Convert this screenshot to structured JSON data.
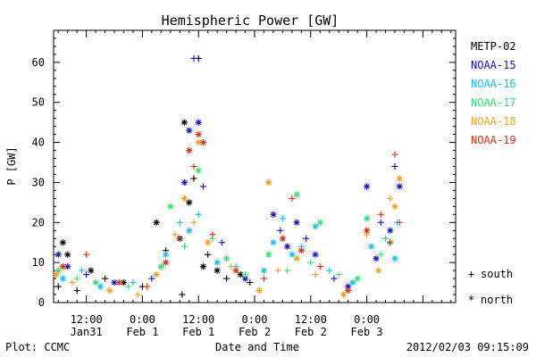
{
  "chart_data": {
    "type": "scatter",
    "title": "Hemispheric Power [GW]",
    "xlabel": "Date and Time",
    "ylabel": "P [GW]",
    "xlim": [
      "2012-01-31T05:00",
      "2012-02-03T19:00"
    ],
    "ylim": [
      0,
      68
    ],
    "grid": false,
    "legend_position": "right",
    "x_ticks": [
      {
        "t": "2012-01-31T12:00",
        "line1": "12:00",
        "line2": "Jan31"
      },
      {
        "t": "2012-02-01T00:00",
        "line1": "0:00",
        "line2": "Feb 1"
      },
      {
        "t": "2012-02-01T12:00",
        "line1": "12:00",
        "line2": "Feb 1"
      },
      {
        "t": "2012-02-02T00:00",
        "line1": "0:00",
        "line2": "Feb 2"
      },
      {
        "t": "2012-02-02T12:00",
        "line1": "12:00",
        "line2": "Feb 2"
      },
      {
        "t": "2012-02-03T00:00",
        "line1": "0:00",
        "line2": "Feb 3"
      }
    ],
    "y_ticks": [
      0,
      10,
      20,
      30,
      40,
      50,
      60
    ],
    "marker_legend": [
      {
        "symbol": "+",
        "label": "south"
      },
      {
        "symbol": "*",
        "label": "north"
      }
    ],
    "footer_left": "Plot: CCMC",
    "footer_right": "2012/02/03 09:15:09",
    "series": [
      {
        "name": "METP-02",
        "color": "#000000",
        "points": [
          [
            "2012-01-31T06:00",
            4,
            "+"
          ],
          [
            "2012-01-31T07:00",
            15,
            "*"
          ],
          [
            "2012-01-31T08:00",
            12,
            "*"
          ],
          [
            "2012-01-31T10:00",
            3,
            "+"
          ],
          [
            "2012-01-31T13:00",
            8,
            "*"
          ],
          [
            "2012-01-31T16:00",
            6,
            "+"
          ],
          [
            "2012-01-31T20:00",
            5,
            "*"
          ],
          [
            "2012-02-01T00:00",
            4,
            "+"
          ],
          [
            "2012-02-01T03:00",
            20,
            "*"
          ],
          [
            "2012-02-01T05:00",
            13,
            "+"
          ],
          [
            "2012-02-01T08:00",
            16,
            "*"
          ],
          [
            "2012-02-01T08:30",
            2,
            "+"
          ],
          [
            "2012-02-01T09:00",
            45,
            "*"
          ],
          [
            "2012-02-01T10:00",
            25,
            "*"
          ],
          [
            "2012-02-01T11:00",
            31,
            "+"
          ],
          [
            "2012-02-01T12:00",
            61,
            "+"
          ],
          [
            "2012-02-01T13:00",
            9,
            "*"
          ],
          [
            "2012-02-01T14:00",
            12,
            "+"
          ],
          [
            "2012-02-01T16:00",
            8,
            "*"
          ],
          [
            "2012-02-01T18:00",
            6,
            "+"
          ],
          [
            "2012-02-01T21:00",
            7,
            "*"
          ],
          [
            "2012-02-01T23:00",
            5,
            "+"
          ]
        ]
      },
      {
        "name": "NOAA-15",
        "color": "#1010d0",
        "points": [
          [
            "2012-01-31T06:00",
            12,
            "*"
          ],
          [
            "2012-01-31T08:00",
            9,
            "*"
          ],
          [
            "2012-01-31T12:00",
            7,
            "+"
          ],
          [
            "2012-01-31T18:00",
            5,
            "*"
          ],
          [
            "2012-02-01T02:00",
            6,
            "+"
          ],
          [
            "2012-02-01T09:00",
            30,
            "*"
          ],
          [
            "2012-02-01T10:00",
            43,
            "*"
          ],
          [
            "2012-02-01T11:00",
            61,
            "+"
          ],
          [
            "2012-02-01T12:00",
            45,
            "*"
          ],
          [
            "2012-02-01T13:00",
            29,
            "+"
          ],
          [
            "2012-02-01T17:00",
            15,
            "+"
          ],
          [
            "2012-02-01T22:00",
            6,
            "*"
          ],
          [
            "2012-02-02T04:00",
            22,
            "*"
          ],
          [
            "2012-02-02T05:30",
            18,
            "+"
          ],
          [
            "2012-02-02T07:00",
            14,
            "*"
          ],
          [
            "2012-02-02T09:00",
            20,
            "*"
          ],
          [
            "2012-02-02T11:00",
            16,
            "+"
          ],
          [
            "2012-02-02T13:00",
            12,
            "*"
          ],
          [
            "2012-02-02T17:00",
            6,
            "+"
          ],
          [
            "2012-02-02T20:00",
            4,
            "*"
          ],
          [
            "2012-02-03T00:00",
            29,
            "*"
          ],
          [
            "2012-02-03T02:00",
            11,
            "*"
          ],
          [
            "2012-02-03T03:00",
            20,
            "+"
          ],
          [
            "2012-02-03T05:00",
            18,
            "*"
          ],
          [
            "2012-02-03T06:00",
            34,
            "+"
          ],
          [
            "2012-02-03T07:00",
            29,
            "*"
          ]
        ]
      },
      {
        "name": "NOAA-16",
        "color": "#10c0f0",
        "points": [
          [
            "2012-01-31T07:00",
            6,
            "*"
          ],
          [
            "2012-01-31T11:00",
            8,
            "+"
          ],
          [
            "2012-01-31T15:00",
            4,
            "*"
          ],
          [
            "2012-01-31T22:00",
            5,
            "+"
          ],
          [
            "2012-02-01T05:00",
            12,
            "*"
          ],
          [
            "2012-02-01T08:00",
            20,
            "+"
          ],
          [
            "2012-02-01T10:00",
            18,
            "*"
          ],
          [
            "2012-02-01T12:00",
            22,
            "+"
          ],
          [
            "2012-02-01T16:00",
            10,
            "*"
          ],
          [
            "2012-02-01T20:00",
            9,
            "+"
          ],
          [
            "2012-02-02T02:00",
            8,
            "*"
          ],
          [
            "2012-02-02T04:00",
            15,
            "*"
          ],
          [
            "2012-02-02T06:00",
            21,
            "+"
          ],
          [
            "2012-02-02T08:00",
            12,
            "*"
          ],
          [
            "2012-02-02T10:00",
            14,
            "+"
          ],
          [
            "2012-02-02T13:00",
            19,
            "*"
          ],
          [
            "2012-02-02T16:00",
            8,
            "+"
          ],
          [
            "2012-02-02T21:00",
            5,
            "*"
          ],
          [
            "2012-02-03T01:00",
            14,
            "*"
          ],
          [
            "2012-02-03T04:00",
            16,
            "+"
          ],
          [
            "2012-02-03T06:00",
            11,
            "*"
          ],
          [
            "2012-02-03T06:30",
            20,
            "+"
          ]
        ]
      },
      {
        "name": "NOAA-17",
        "color": "#30e070",
        "points": [
          [
            "2012-01-31T06:00",
            8,
            "*"
          ],
          [
            "2012-01-31T10:00",
            6,
            "+"
          ],
          [
            "2012-01-31T14:00",
            5,
            "*"
          ],
          [
            "2012-01-31T21:00",
            4,
            "+"
          ],
          [
            "2012-02-01T04:00",
            9,
            "*"
          ],
          [
            "2012-02-01T06:00",
            24,
            "*"
          ],
          [
            "2012-02-01T09:00",
            14,
            "+"
          ],
          [
            "2012-02-01T12:00",
            33,
            "*"
          ],
          [
            "2012-02-01T15:00",
            16,
            "+"
          ],
          [
            "2012-02-01T18:00",
            11,
            "*"
          ],
          [
            "2012-02-01T22:00",
            7,
            "+"
          ],
          [
            "2012-02-02T03:00",
            12,
            "*"
          ],
          [
            "2012-02-02T07:00",
            8,
            "+"
          ],
          [
            "2012-02-02T09:00",
            27,
            "*"
          ],
          [
            "2012-02-02T12:00",
            10,
            "+"
          ],
          [
            "2012-02-02T14:00",
            20,
            "*"
          ],
          [
            "2012-02-02T18:00",
            7,
            "+"
          ],
          [
            "2012-02-02T22:00",
            6,
            "*"
          ],
          [
            "2012-02-03T00:00",
            21,
            "*"
          ],
          [
            "2012-02-03T03:00",
            12,
            "+"
          ],
          [
            "2012-02-03T05:00",
            15,
            "*"
          ]
        ]
      },
      {
        "name": "NOAA-18",
        "color": "#f0a020",
        "points": [
          [
            "2012-01-31T05:30",
            7,
            "*"
          ],
          [
            "2012-01-31T09:00",
            5,
            "+"
          ],
          [
            "2012-01-31T17:00",
            3,
            "*"
          ],
          [
            "2012-01-31T23:00",
            2,
            "+"
          ],
          [
            "2012-02-01T03:00",
            7,
            "*"
          ],
          [
            "2012-02-01T07:00",
            17,
            "+"
          ],
          [
            "2012-02-01T09:00",
            26,
            "*"
          ],
          [
            "2012-02-01T11:00",
            20,
            "+"
          ],
          [
            "2012-02-01T12:00",
            40,
            "*"
          ],
          [
            "2012-02-01T14:00",
            15,
            "*"
          ],
          [
            "2012-02-01T19:00",
            9,
            "+"
          ],
          [
            "2012-02-02T01:00",
            3,
            "*"
          ],
          [
            "2012-02-02T03:00",
            30,
            "*"
          ],
          [
            "2012-02-02T05:00",
            8,
            "+"
          ],
          [
            "2012-02-02T09:00",
            11,
            "*"
          ],
          [
            "2012-02-02T13:00",
            7,
            "+"
          ],
          [
            "2012-02-02T19:00",
            2,
            "*"
          ],
          [
            "2012-02-03T00:00",
            17,
            "+"
          ],
          [
            "2012-02-03T02:30",
            8,
            "*"
          ],
          [
            "2012-02-03T05:00",
            26,
            "+"
          ],
          [
            "2012-02-03T06:00",
            24,
            "*"
          ],
          [
            "2012-02-03T07:00",
            31,
            "*"
          ]
        ]
      },
      {
        "name": "NOAA-19",
        "color": "#e03010",
        "points": [
          [
            "2012-01-31T07:00",
            9,
            "*"
          ],
          [
            "2012-01-31T12:00",
            12,
            "+"
          ],
          [
            "2012-01-31T19:00",
            5,
            "*"
          ],
          [
            "2012-02-01T01:00",
            4,
            "+"
          ],
          [
            "2012-02-01T05:00",
            10,
            "*"
          ],
          [
            "2012-02-01T08:00",
            16,
            "+"
          ],
          [
            "2012-02-01T10:00",
            38,
            "*"
          ],
          [
            "2012-02-01T11:00",
            34,
            "+"
          ],
          [
            "2012-02-01T12:00",
            42,
            "*"
          ],
          [
            "2012-02-01T13:00",
            40,
            "*"
          ],
          [
            "2012-02-01T15:00",
            17,
            "+"
          ],
          [
            "2012-02-01T20:00",
            8,
            "*"
          ],
          [
            "2012-02-02T02:00",
            6,
            "+"
          ],
          [
            "2012-02-02T06:00",
            16,
            "*"
          ],
          [
            "2012-02-02T08:00",
            26,
            "+"
          ],
          [
            "2012-02-02T10:00",
            13,
            "*"
          ],
          [
            "2012-02-02T14:00",
            9,
            "+"
          ],
          [
            "2012-02-02T20:00",
            3,
            "*"
          ],
          [
            "2012-02-03T00:00",
            18,
            "*"
          ],
          [
            "2012-02-03T03:00",
            22,
            "+"
          ],
          [
            "2012-02-03T05:00",
            15,
            "+"
          ],
          [
            "2012-02-03T06:00",
            37,
            "+"
          ],
          [
            "2012-02-03T07:00",
            20,
            "+"
          ]
        ]
      }
    ]
  }
}
